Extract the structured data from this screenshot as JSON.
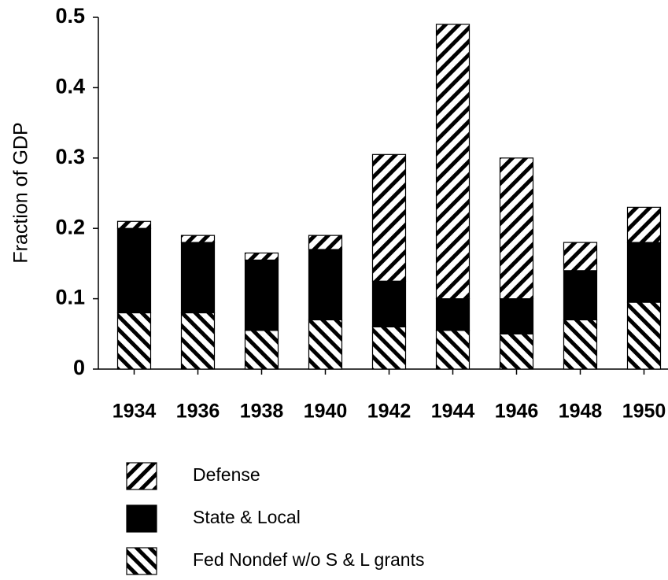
{
  "chart_data": {
    "type": "stacked_bar",
    "y_label": "Fraction of GDP",
    "categories": [
      "1934",
      "1936",
      "1938",
      "1940",
      "1942",
      "1944",
      "1946",
      "1948",
      "1950"
    ],
    "series": [
      {
        "name": "Fed Nondef w/o S & L grants",
        "color": "#000000",
        "hatch": "\\",
        "values": [
          0.08,
          0.08,
          0.055,
          0.07,
          0.06,
          0.055,
          0.05,
          0.07,
          0.095
        ]
      },
      {
        "name": "State & Local",
        "color": "#000000",
        "hatch": "solid",
        "values": [
          0.12,
          0.1,
          0.1,
          0.1,
          0.065,
          0.045,
          0.05,
          0.07,
          0.085
        ]
      },
      {
        "name": "Defense",
        "color": "#000000",
        "hatch": "/",
        "values": [
          0.01,
          0.01,
          0.01,
          0.02,
          0.18,
          0.39,
          0.2,
          0.04,
          0.05
        ]
      }
    ],
    "ylim": [
      0,
      0.5
    ],
    "yticks": [
      0,
      0.1,
      0.2,
      0.3,
      0.4,
      0.5
    ]
  }
}
